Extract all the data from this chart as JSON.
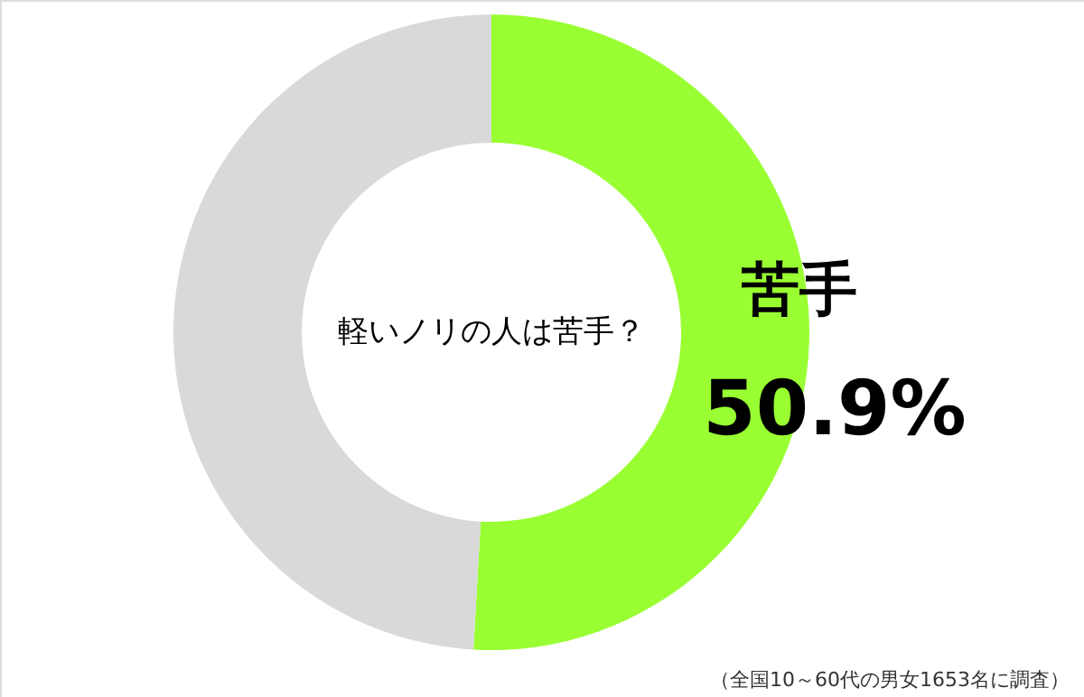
{
  "chart_data": {
    "type": "donut",
    "title": "軽いノリの人は苦手？",
    "categories": [
      "苦手",
      null
    ],
    "values": [
      50.9,
      49.1
    ],
    "colors": [
      "#99ff33",
      "#d9d9d9"
    ],
    "value_labels": [
      "50.9%",
      null
    ],
    "legend": false,
    "annotations": [
      "（全国10～60代の男女1653名に調査）"
    ]
  }
}
